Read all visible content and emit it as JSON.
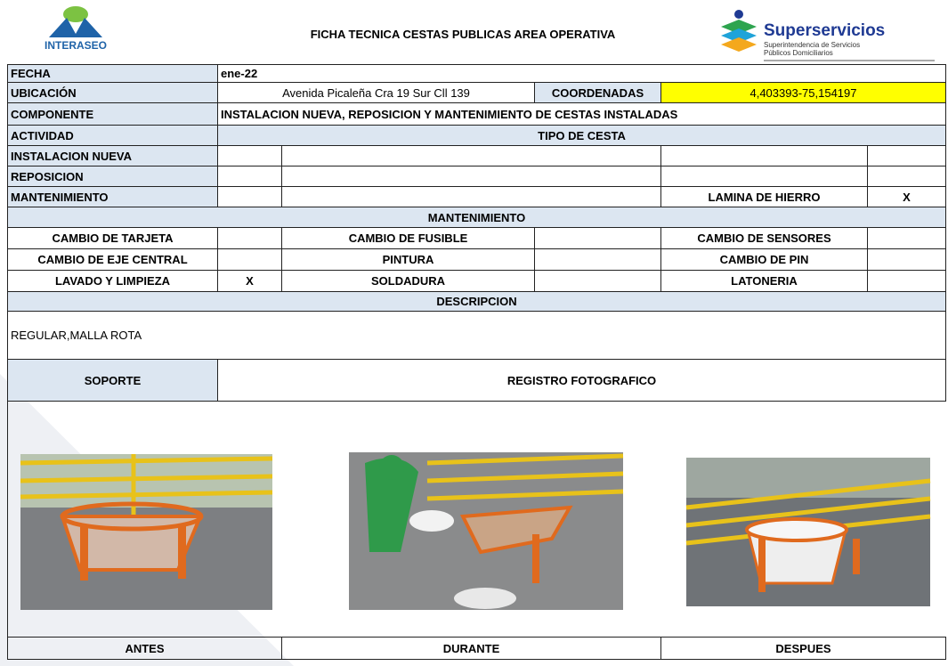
{
  "header": {
    "title": "FICHA TECNICA CESTAS PUBLICAS AREA OPERATIVA",
    "left_logo": "INTERASEO",
    "right_logo": {
      "name": "Superservicios",
      "subtitle_1": "Superintendencia de Servicios",
      "subtitle_2": "Públicos Domiciliarios"
    }
  },
  "form": {
    "fecha": {
      "label": "FECHA",
      "value": "ene-22"
    },
    "ubicacion": {
      "label": "UBICACIÓN",
      "value": "Avenida Picaleña Cra 19 Sur Cll 139"
    },
    "coordenadas": {
      "label": "COORDENADAS",
      "value": "4,403393-75,154197"
    },
    "componente": {
      "label": "COMPONENTE",
      "value": "INSTALACION NUEVA, REPOSICION Y MANTENIMIENTO DE CESTAS INSTALADAS"
    },
    "actividad": {
      "label": "ACTIVIDAD",
      "tipo_header": "TIPO DE CESTA",
      "rows": [
        {
          "label": "INSTALACION NUEVA"
        },
        {
          "label": "REPOSICION"
        },
        {
          "label": "MANTENIMIENTO",
          "tipo": "LAMINA DE HIERRO",
          "mark": "X"
        }
      ]
    },
    "mantenimiento": {
      "title": "MANTENIMIENTO",
      "rows": [
        [
          {
            "label": "CAMBIO DE TARJETA"
          },
          {
            "label": "CAMBIO DE FUSIBLE"
          },
          {
            "label": "CAMBIO DE SENSORES"
          }
        ],
        [
          {
            "label": "CAMBIO DE EJE CENTRAL"
          },
          {
            "label": "PINTURA"
          },
          {
            "label": "CAMBIO DE PIN"
          }
        ],
        [
          {
            "label": "LAVADO Y LIMPIEZA",
            "mark": "X"
          },
          {
            "label": "SOLDADURA"
          },
          {
            "label": "LATONERIA"
          }
        ]
      ]
    },
    "descripcion": {
      "title": "DESCRIPCION",
      "text": "REGULAR,MALLA ROTA"
    },
    "soporte": {
      "label": "SOPORTE",
      "title": "REGISTRO FOTOGRAFICO",
      "photos": [
        "ANTES",
        "DURANTE",
        "DESPUES"
      ]
    }
  }
}
